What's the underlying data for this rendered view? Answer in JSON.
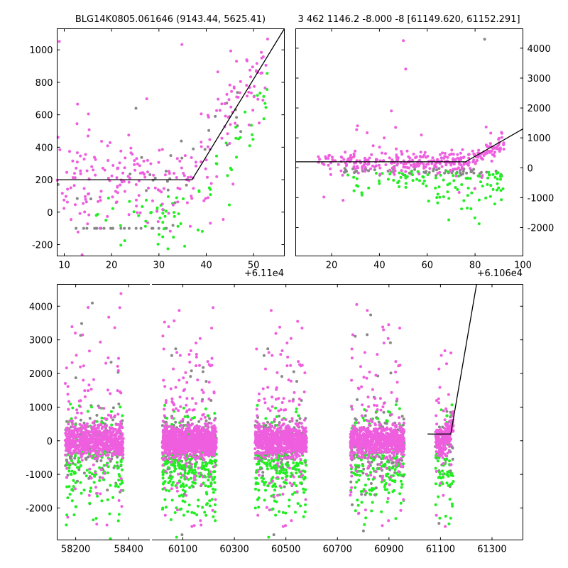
{
  "figure": {
    "description_free": true
  },
  "colors": {
    "pink": "#ee5ede",
    "green": "#22ee22",
    "gray": "#888888",
    "model": "#000000"
  },
  "chart_data": [
    {
      "id": "top_left",
      "type": "scatter",
      "title": "BLG14K0805.061646 (9143.44, 5625.41)",
      "offset_label": "+6.11e4",
      "xlim": [
        8.5,
        56.5
      ],
      "ylim": [
        -270,
        1130
      ],
      "xticks": [
        10,
        20,
        30,
        40,
        50
      ],
      "yticks": [
        -200,
        0,
        200,
        400,
        600,
        800,
        1000
      ],
      "ytick_side": "left",
      "model_line": {
        "x": [
          8.5,
          37,
          56.5
        ],
        "y": [
          200,
          200,
          1130
        ]
      },
      "series": [
        {
          "name": "pink",
          "color": "#ee5ede",
          "count": 260,
          "pattern": "baseline ~200 scattered 0-450 before 37, rising after 37 with model",
          "x_range": [
            8.5,
            53
          ],
          "y_spread": 170
        },
        {
          "name": "green",
          "color": "#22ee22",
          "count": 80,
          "pattern": "scattered mostly below model, denser after 40",
          "x_range": [
            15,
            53
          ],
          "y_spread": 180
        },
        {
          "name": "gray",
          "color": "#888888",
          "count": 55,
          "pattern": "row at -100 plus scattered",
          "x_range": [
            8.5,
            50
          ],
          "y_spread": 60
        }
      ]
    },
    {
      "id": "top_right",
      "type": "scatter",
      "title": "3 462 1146.2 -8.000 -8 [61149.620, 61152.291]",
      "offset_label": "+6.106e4",
      "xlim": [
        5,
        100
      ],
      "ylim": [
        -2950,
        4650
      ],
      "xticks": [
        20,
        40,
        60,
        80,
        100
      ],
      "yticks": [
        -2000,
        -1000,
        0,
        1000,
        2000,
        3000,
        4000
      ],
      "ytick_side": "right",
      "model_line": {
        "x": [
          5,
          76,
          100
        ],
        "y": [
          200,
          200,
          1300
        ]
      },
      "series": [
        {
          "name": "pink",
          "color": "#ee5ede",
          "count": 330,
          "pattern": "dense band near 200 from 30-77, rising to ~800 near 90",
          "x_range": [
            13,
            92
          ],
          "y_spread": 180
        },
        {
          "name": "green",
          "color": "#22ee22",
          "count": 110,
          "pattern": "scattered below band, 0 to -2500, denser after 60",
          "x_range": [
            25,
            92
          ],
          "y_spread": 700
        },
        {
          "name": "gray",
          "color": "#888888",
          "count": 60,
          "pattern": "row near -120",
          "x_range": [
            25,
            92
          ],
          "y_spread": 80
        }
      ]
    },
    {
      "id": "bottom",
      "type": "scatter",
      "title": "",
      "broken_axis": true,
      "segments": [
        {
          "xlim": [
            58130,
            58480
          ],
          "xticks": [
            58200,
            58400
          ]
        },
        {
          "xlim": [
            59980,
            61420
          ],
          "xticks": [
            60100,
            60300,
            60500,
            60700,
            60900,
            61100,
            61300
          ]
        }
      ],
      "ylim": [
        -2950,
        4650
      ],
      "yticks": [
        -2000,
        -1000,
        0,
        1000,
        2000,
        3000,
        4000
      ],
      "ytick_side": "left",
      "model_line": {
        "x": [
          61050,
          61140,
          61240
        ],
        "y": [
          200,
          200,
          4650
        ]
      },
      "seasons": [
        {
          "x_range": [
            58160,
            58380
          ],
          "pink": 700,
          "green": 140,
          "gray": 170
        },
        {
          "x_range": [
            60020,
            60230
          ],
          "pink": 1000,
          "green": 260,
          "gray": 230
        },
        {
          "x_range": [
            60380,
            60580
          ],
          "pink": 800,
          "green": 200,
          "gray": 190
        },
        {
          "x_range": [
            60750,
            60960
          ],
          "pink": 800,
          "green": 160,
          "gray": 190
        },
        {
          "x_range": [
            61080,
            61150
          ],
          "pink": 220,
          "green": 60,
          "gray": 40
        }
      ]
    }
  ]
}
